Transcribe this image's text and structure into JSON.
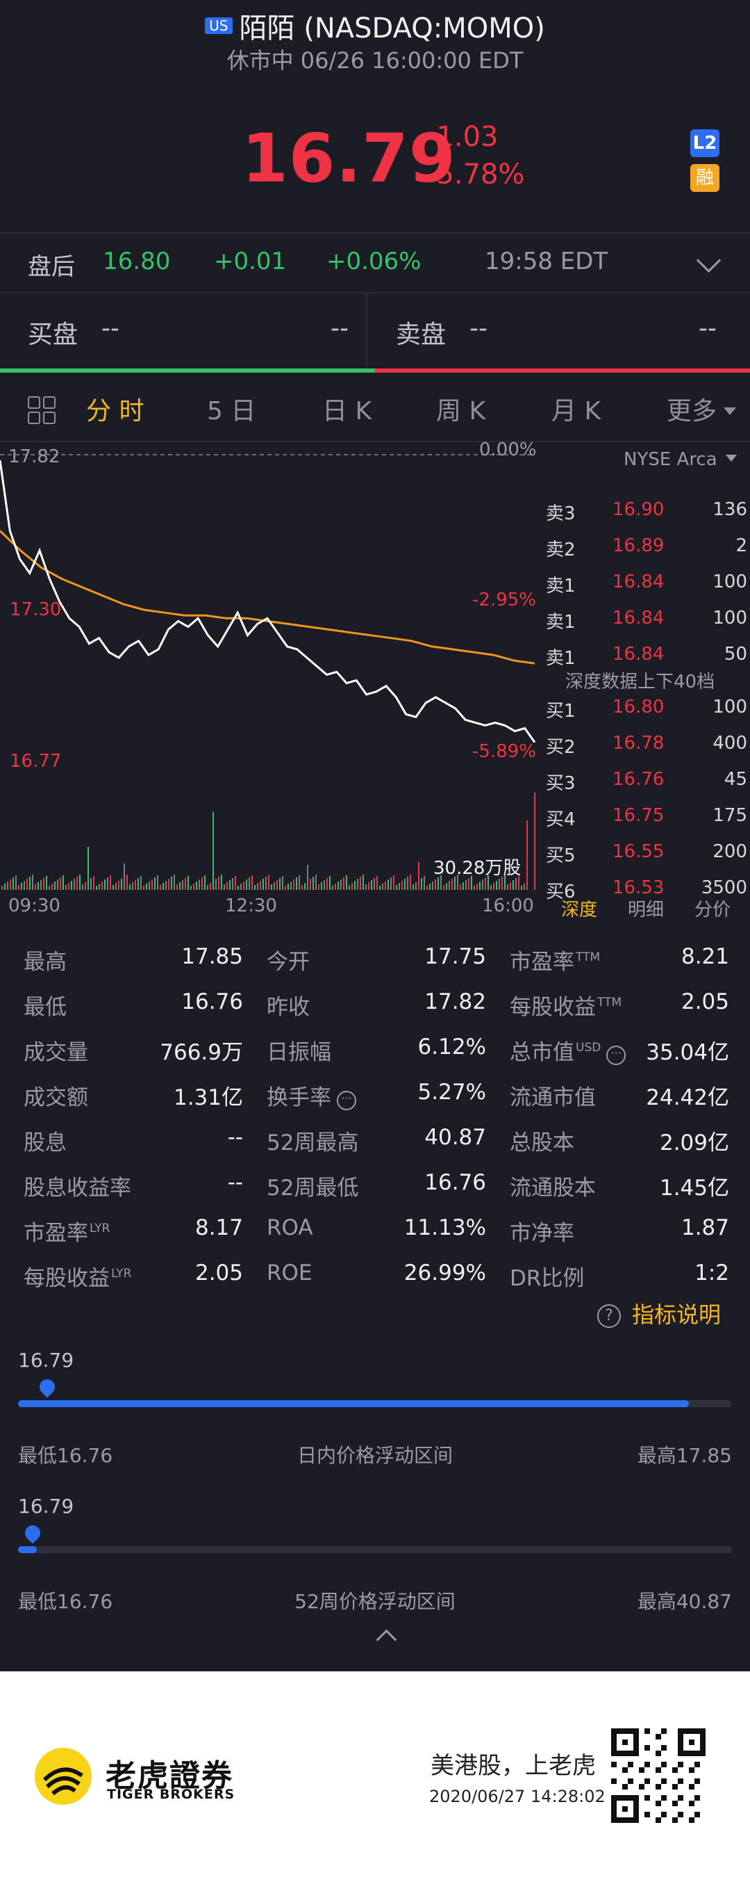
{
  "header": {
    "market_badge": "US",
    "title": "陌陌 (NASDAQ:MOMO)",
    "status": "休市中 06/26 16:00:00 EDT",
    "price": "16.79",
    "change": "-1.03",
    "change_pct": "-5.78%",
    "badge_l2": "L2",
    "badge_margin": "融"
  },
  "after_hours": {
    "label": "盘后",
    "price": "16.80",
    "change": "+0.01",
    "change_pct": "+0.06%",
    "time": "19:58 EDT"
  },
  "bid_ask": {
    "bid_label": "买盘",
    "bid_val1": "--",
    "bid_val2": "--",
    "ask_label": "卖盘",
    "ask_val1": "--",
    "ask_val2": "--"
  },
  "tabs": [
    "分 时",
    "5 日",
    "日 K",
    "周 K",
    "月 K",
    "更多"
  ],
  "chart": {
    "top_price": "17.82",
    "top_pct": "0.00%",
    "mid_price": "17.30",
    "mid_pct": "-2.95%",
    "low_price": "16.77",
    "low_pct": "-5.89%",
    "volume_label": "30.28万股",
    "times": [
      "09:30",
      "12:30",
      "16:00"
    ],
    "exchange": "NYSE Arca"
  },
  "chart_data": {
    "type": "line",
    "x_range": [
      "09:30",
      "16:00"
    ],
    "ylim": [
      16.77,
      17.82
    ],
    "series": [
      {
        "values": [
          17.8,
          17.55,
          17.45,
          17.4,
          17.48,
          17.38,
          17.3,
          17.24,
          17.21,
          17.15,
          17.17,
          17.12,
          17.1,
          17.14,
          17.16,
          17.11,
          17.13,
          17.2,
          17.23,
          17.21,
          17.24,
          17.18,
          17.14,
          17.2,
          17.26,
          17.18,
          17.22,
          17.24,
          17.19,
          17.14,
          17.13,
          17.1,
          17.07,
          17.04,
          17.05,
          17.01,
          17.02,
          16.97,
          16.98,
          17.0,
          16.96,
          16.9,
          16.89,
          16.94,
          16.96,
          16.94,
          16.92,
          16.88,
          16.87,
          16.86,
          16.87,
          16.86,
          16.84,
          16.85,
          16.8
        ]
      },
      {
        "values": [
          17.55,
          17.48,
          17.42,
          17.38,
          17.35,
          17.32,
          17.29,
          17.27,
          17.26,
          17.25,
          17.25,
          17.24,
          17.24,
          17.23,
          17.22,
          17.21,
          17.2,
          17.19,
          17.18,
          17.17,
          17.16,
          17.14,
          17.13,
          17.12,
          17.11,
          17.09,
          17.08
        ]
      }
    ]
  },
  "order_book": {
    "asks": [
      {
        "side": "卖3",
        "price": "16.90",
        "vol": "136"
      },
      {
        "side": "卖2",
        "price": "16.89",
        "vol": "2"
      },
      {
        "side": "卖1",
        "price": "16.84",
        "vol": "100"
      },
      {
        "side": "卖1",
        "price": "16.84",
        "vol": "100"
      },
      {
        "side": "卖1",
        "price": "16.84",
        "vol": "50"
      }
    ],
    "depth_note": "深度数据上下40档",
    "bids": [
      {
        "side": "买1",
        "price": "16.80",
        "vol": "100"
      },
      {
        "side": "买2",
        "price": "16.78",
        "vol": "400"
      },
      {
        "side": "买3",
        "price": "16.76",
        "vol": "45"
      },
      {
        "side": "买4",
        "price": "16.75",
        "vol": "175"
      },
      {
        "side": "买5",
        "price": "16.55",
        "vol": "200"
      },
      {
        "side": "买6",
        "price": "16.53",
        "vol": "3500"
      }
    ],
    "tabs": [
      "深度",
      "明细",
      "分价"
    ]
  },
  "stats": [
    [
      {
        "label": "最高",
        "value": "17.85"
      },
      {
        "label": "今开",
        "value": "17.75"
      },
      {
        "label": "市盈率",
        "sup": "TTM",
        "value": "8.21"
      }
    ],
    [
      {
        "label": "最低",
        "value": "16.76"
      },
      {
        "label": "昨收",
        "value": "17.82"
      },
      {
        "label": "每股收益",
        "sup": "TTM",
        "value": "2.05"
      }
    ],
    [
      {
        "label": "成交量",
        "value": "766.9万"
      },
      {
        "label": "日振幅",
        "value": "6.12%"
      },
      {
        "label": "总市值",
        "sup": "USD",
        "value": "35.04亿"
      }
    ],
    [
      {
        "label": "成交额",
        "value": "1.31亿"
      },
      {
        "label": "换手率",
        "value": "5.27%"
      },
      {
        "label": "流通市值",
        "value": "24.42亿"
      }
    ],
    [
      {
        "label": "股息",
        "value": "--"
      },
      {
        "label": "52周最高",
        "value": "40.87"
      },
      {
        "label": "总股本",
        "value": "2.09亿"
      }
    ],
    [
      {
        "label": "股息收益率",
        "value": "--"
      },
      {
        "label": "52周最低",
        "value": "16.76"
      },
      {
        "label": "流通股本",
        "value": "1.45亿"
      }
    ],
    [
      {
        "label": "市盈率",
        "sup": "LYR",
        "value": "8.17"
      },
      {
        "label": "ROA",
        "value": "11.13%"
      },
      {
        "label": "市净率",
        "value": "1.87"
      }
    ],
    [
      {
        "label": "每股收益",
        "sup": "LYR",
        "value": "2.05"
      },
      {
        "label": "ROE",
        "value": "26.99%"
      },
      {
        "label": "DR比例",
        "value": "1:2"
      }
    ]
  ],
  "help_label": "指标说明",
  "ranges": [
    {
      "price": "16.79",
      "low": "最低16.76",
      "title": "日内价格浮动区间",
      "high": "最高17.85",
      "fill_fraction": 0.94,
      "pin_fraction": 0.03
    },
    {
      "price": "16.79",
      "low": "最低16.76",
      "title": "52周价格浮动区间",
      "high": "最高40.87",
      "fill_fraction": 0.026,
      "pin_fraction": 0.01
    }
  ],
  "footer": {
    "brand_cn": "老虎證券",
    "brand_en": "TIGER BROKERS",
    "slogan": "美港股，上老虎",
    "timestamp": "2020/06/27 14:28:02"
  },
  "colors": {
    "up": "#34c36b",
    "down": "#ee3344",
    "accent": "#f5b623",
    "blue": "#2d6ef0",
    "avg_line": "#f0961e"
  }
}
